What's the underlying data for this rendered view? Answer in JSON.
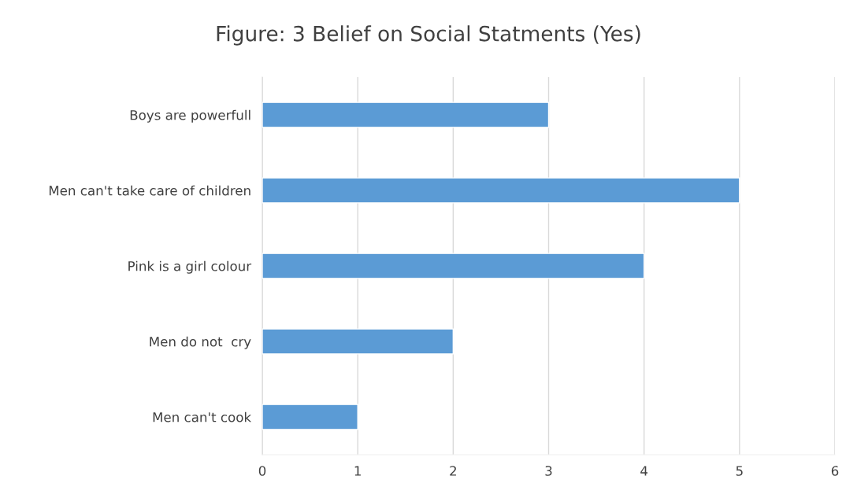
{
  "chart_data": {
    "type": "bar",
    "orientation": "horizontal",
    "title": "Figure: 3 Belief on Social Statments (Yes)",
    "categories": [
      "Boys are powerfull",
      "Men can't take care of children",
      "Pink is a girl colour",
      "Men do not  cry",
      "Men can't cook"
    ],
    "values": [
      3,
      5,
      4,
      2,
      1
    ],
    "color": "#5b9bd5",
    "xlim": [
      0,
      6
    ],
    "xticks": [
      0,
      1,
      2,
      3,
      4,
      5,
      6
    ],
    "grid": "x"
  }
}
